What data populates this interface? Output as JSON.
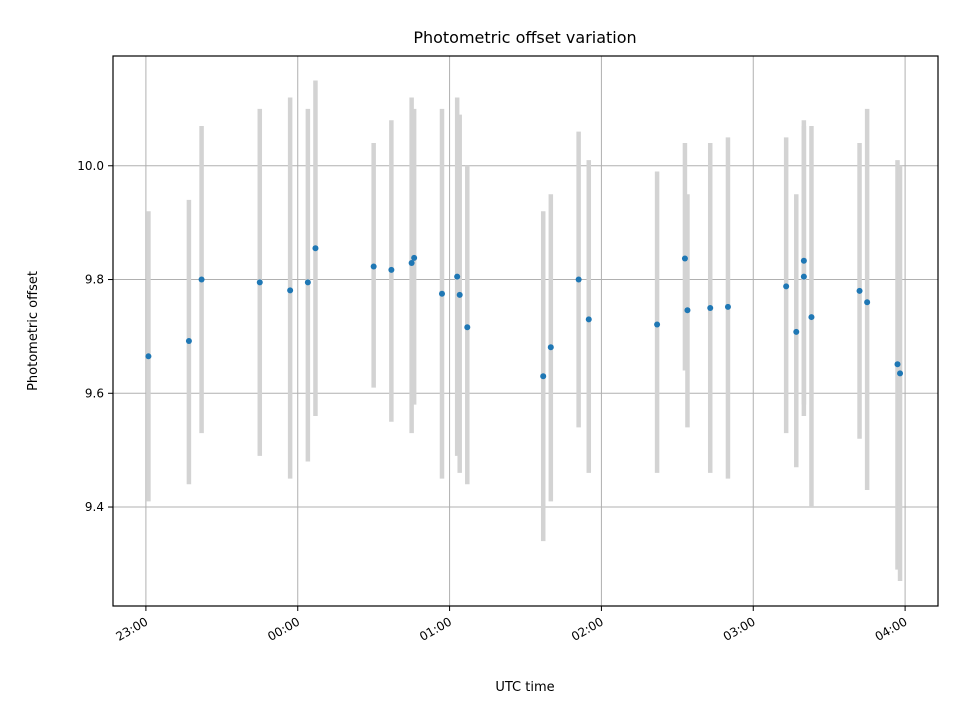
{
  "chart_data": {
    "type": "scatter",
    "title": "Photometric offset variation",
    "xlabel": "UTC time",
    "ylabel": "Photometric offset",
    "x_unit": "UTC time, 23:00 to 04:00 (next day)",
    "xlim": [
      "22:47",
      "04:13"
    ],
    "ylim": [
      9.226,
      10.193
    ],
    "x_ticks": [
      "23:00",
      "00:00",
      "01:00",
      "02:00",
      "03:00",
      "04:00"
    ],
    "y_ticks": [
      9.4,
      9.6,
      9.8,
      10.0
    ],
    "y_tick_labels": [
      "9.4",
      "9.6",
      "9.8",
      "10.0"
    ],
    "grid": true,
    "legend": "none",
    "colors": {
      "point": "#1f77b4",
      "errorbar": "#d3d3d3",
      "grid": "#b0b0b0"
    },
    "points": [
      {
        "x": "23:01",
        "y": 9.665,
        "ymin": 9.41,
        "ymax": 9.92
      },
      {
        "x": "23:17",
        "y": 9.692,
        "ymin": 9.44,
        "ymax": 9.94
      },
      {
        "x": "23:22",
        "y": 9.8,
        "ymin": 9.53,
        "ymax": 10.07
      },
      {
        "x": "23:45",
        "y": 9.795,
        "ymin": 9.49,
        "ymax": 10.1
      },
      {
        "x": "23:57",
        "y": 9.781,
        "ymin": 9.45,
        "ymax": 10.12
      },
      {
        "x": "00:04",
        "y": 9.795,
        "ymin": 9.48,
        "ymax": 10.1
      },
      {
        "x": "00:07",
        "y": 9.855,
        "ymin": 9.56,
        "ymax": 10.15
      },
      {
        "x": "00:30",
        "y": 9.823,
        "ymin": 9.61,
        "ymax": 10.04
      },
      {
        "x": "00:37",
        "y": 9.817,
        "ymin": 9.55,
        "ymax": 10.08
      },
      {
        "x": "00:45",
        "y": 9.829,
        "ymin": 9.53,
        "ymax": 10.12
      },
      {
        "x": "00:46",
        "y": 9.838,
        "ymin": 9.58,
        "ymax": 10.1
      },
      {
        "x": "00:57",
        "y": 9.775,
        "ymin": 9.45,
        "ymax": 10.1
      },
      {
        "x": "01:03",
        "y": 9.805,
        "ymin": 9.49,
        "ymax": 10.12
      },
      {
        "x": "01:04",
        "y": 9.773,
        "ymin": 9.46,
        "ymax": 10.09
      },
      {
        "x": "01:07",
        "y": 9.716,
        "ymin": 9.44,
        "ymax": 10.0
      },
      {
        "x": "01:37",
        "y": 9.63,
        "ymin": 9.34,
        "ymax": 9.92
      },
      {
        "x": "01:40",
        "y": 9.681,
        "ymin": 9.41,
        "ymax": 9.95
      },
      {
        "x": "01:51",
        "y": 9.8,
        "ymin": 9.54,
        "ymax": 10.06
      },
      {
        "x": "01:55",
        "y": 9.73,
        "ymin": 9.46,
        "ymax": 10.01
      },
      {
        "x": "02:22",
        "y": 9.721,
        "ymin": 9.46,
        "ymax": 9.99
      },
      {
        "x": "02:33",
        "y": 9.837,
        "ymin": 9.64,
        "ymax": 10.04
      },
      {
        "x": "02:34",
        "y": 9.746,
        "ymin": 9.54,
        "ymax": 9.95
      },
      {
        "x": "02:43",
        "y": 9.75,
        "ymin": 9.46,
        "ymax": 10.04
      },
      {
        "x": "02:50",
        "y": 9.752,
        "ymin": 9.45,
        "ymax": 10.05
      },
      {
        "x": "03:13",
        "y": 9.788,
        "ymin": 9.53,
        "ymax": 10.05
      },
      {
        "x": "03:17",
        "y": 9.708,
        "ymin": 9.47,
        "ymax": 9.95
      },
      {
        "x": "03:20",
        "y": 9.833,
        "ymin": 9.58,
        "ymax": 10.08
      },
      {
        "x": "03:20",
        "y": 9.805,
        "ymin": 9.56,
        "ymax": 10.07
      },
      {
        "x": "03:23",
        "y": 9.734,
        "ymin": 9.4,
        "ymax": 10.07
      },
      {
        "x": "03:42",
        "y": 9.78,
        "ymin": 9.52,
        "ymax": 10.04
      },
      {
        "x": "03:45",
        "y": 9.76,
        "ymin": 9.43,
        "ymax": 10.1
      },
      {
        "x": "03:57",
        "y": 9.651,
        "ymin": 9.29,
        "ymax": 10.01
      },
      {
        "x": "03:58",
        "y": 9.635,
        "ymin": 9.27,
        "ymax": 10.0
      }
    ]
  }
}
